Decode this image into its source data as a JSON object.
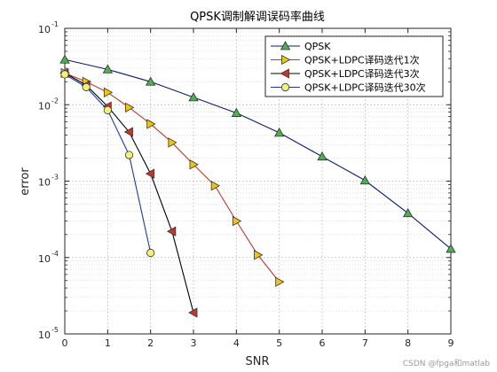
{
  "chart_data": {
    "type": "line",
    "title": "QPSK调制解调误码率曲线",
    "xlabel": "SNR",
    "ylabel": "error",
    "xlim": [
      0,
      9
    ],
    "ylim": [
      1e-05,
      0.1
    ],
    "yscale": "log",
    "grid": true,
    "minor_grid": true,
    "legend_position": "top-right",
    "xticks": [
      "0",
      "1",
      "2",
      "3",
      "4",
      "5",
      "6",
      "7",
      "8",
      "9"
    ],
    "yticks": [
      {
        "base": "10",
        "exp": "-5"
      },
      {
        "base": "10",
        "exp": "-4"
      },
      {
        "base": "10",
        "exp": "-3"
      },
      {
        "base": "10",
        "exp": "-2"
      },
      {
        "base": "10",
        "exp": "-1"
      }
    ],
    "series": [
      {
        "name": "QPSK",
        "marker": "triangle-up",
        "line_color": "#0a1a7a",
        "marker_color": "#4caf50",
        "x": [
          0,
          1,
          2,
          3,
          4,
          5,
          6,
          7,
          8,
          9
        ],
        "y": [
          0.039,
          0.029,
          0.02,
          0.0125,
          0.0078,
          0.0043,
          0.0021,
          0.00102,
          0.00038,
          0.00013
        ]
      },
      {
        "name": "QPSK+LDPC译码迭代1次",
        "marker": "triangle-right",
        "line_color": "#c0392b",
        "marker_color": "#f1c40f",
        "x": [
          0,
          0.5,
          1,
          1.5,
          2,
          2.5,
          3,
          3.5,
          4,
          4.5,
          5
        ],
        "y": [
          0.026,
          0.02,
          0.0145,
          0.0092,
          0.0056,
          0.0032,
          0.00165,
          0.00087,
          0.0003,
          0.000108,
          4.8e-05
        ]
      },
      {
        "name": "QPSK+LDPC译码迭代3次",
        "marker": "triangle-left",
        "line_color": "#000000",
        "marker_color": "#c0392b",
        "x": [
          0,
          0.5,
          1,
          1.5,
          2,
          2.5,
          3
        ],
        "y": [
          0.026,
          0.018,
          0.0095,
          0.0044,
          0.00125,
          0.00022,
          1.9e-05
        ]
      },
      {
        "name": "QPSK+LDPC译码迭代30次",
        "marker": "circle",
        "line_color": "#1f3a9e",
        "marker_color": "#f3f07a",
        "x": [
          0,
          0.5,
          1,
          1.5,
          2
        ],
        "y": [
          0.025,
          0.017,
          0.0085,
          0.0022,
          0.000115
        ]
      }
    ]
  },
  "watermark": "CSDN @fpga和matlab"
}
